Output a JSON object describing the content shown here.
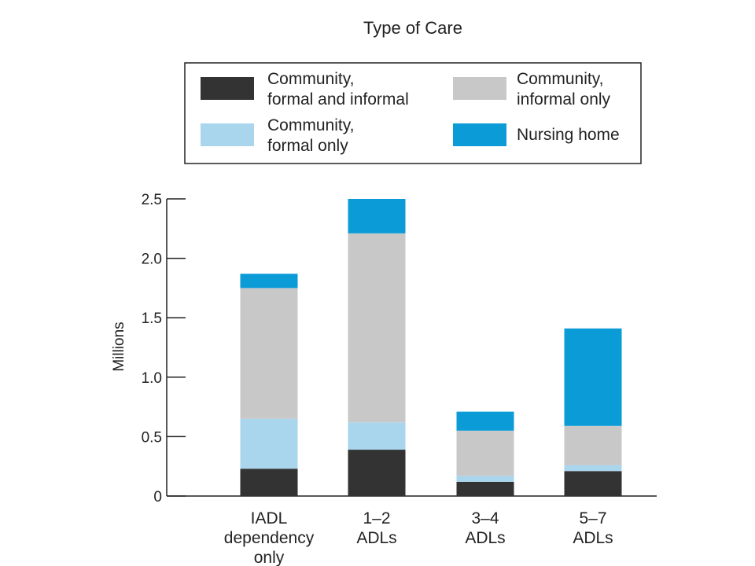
{
  "chart_data": {
    "type": "bar",
    "stacked": true,
    "title": "Type of Care",
    "ylabel": "Millions",
    "xlabel": "",
    "ylim": [
      0,
      2.5
    ],
    "yticks": [
      0,
      0.5,
      1.0,
      1.5,
      2.0,
      2.5
    ],
    "ytick_labels": [
      "0",
      "0.5",
      "1.0",
      "1.5",
      "2.0",
      "2.5"
    ],
    "grid": false,
    "legend_position": "top",
    "categories": [
      [
        "IADL",
        "dependency",
        "only"
      ],
      [
        "1–2",
        "ADLs"
      ],
      [
        "3–4",
        "ADLs"
      ],
      [
        "5–7",
        "ADLs"
      ]
    ],
    "series": [
      {
        "name": [
          "Community,",
          "formal and informal"
        ],
        "color": "#333333",
        "values": [
          0.23,
          0.39,
          0.12,
          0.21
        ]
      },
      {
        "name": [
          "Community,",
          "formal only"
        ],
        "color": "#a9d5ed",
        "values": [
          0.42,
          0.23,
          0.05,
          0.05
        ]
      },
      {
        "name": [
          "Community,",
          "informal only"
        ],
        "color": "#c8c8c8",
        "values": [
          1.1,
          1.59,
          0.38,
          0.33
        ]
      },
      {
        "name": [
          "Nursing home"
        ],
        "color": "#0b9bd6",
        "values": [
          0.12,
          0.29,
          0.16,
          0.82
        ]
      }
    ],
    "legend_order": [
      0,
      2,
      1,
      3
    ]
  }
}
